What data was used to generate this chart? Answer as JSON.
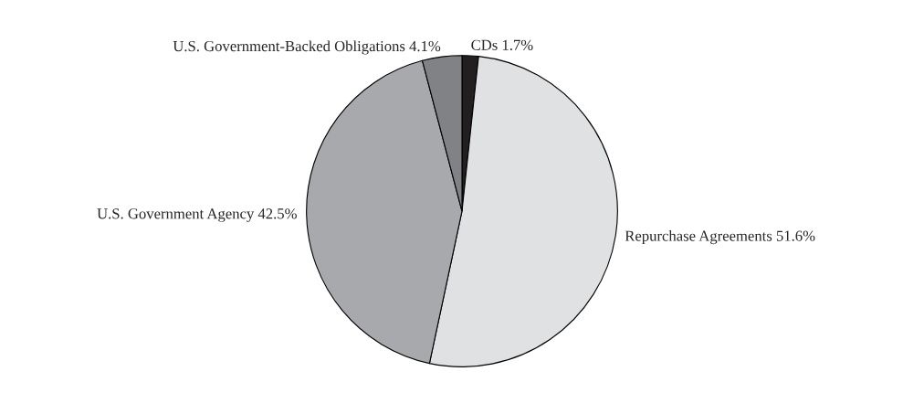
{
  "chart_data": {
    "type": "pie",
    "categories": [
      "CDs",
      "Repurchase Agreements",
      "U.S. Government Agency",
      "U.S. Government-Backed Obligations"
    ],
    "values": [
      1.7,
      51.6,
      42.5,
      4.1
    ],
    "value_labels": [
      "1.7%",
      "51.6%",
      "42.5%",
      "4.1%"
    ],
    "colors": [
      "#231f20",
      "#e0e1e3",
      "#a7a9ac",
      "#808285"
    ],
    "legend": false
  }
}
